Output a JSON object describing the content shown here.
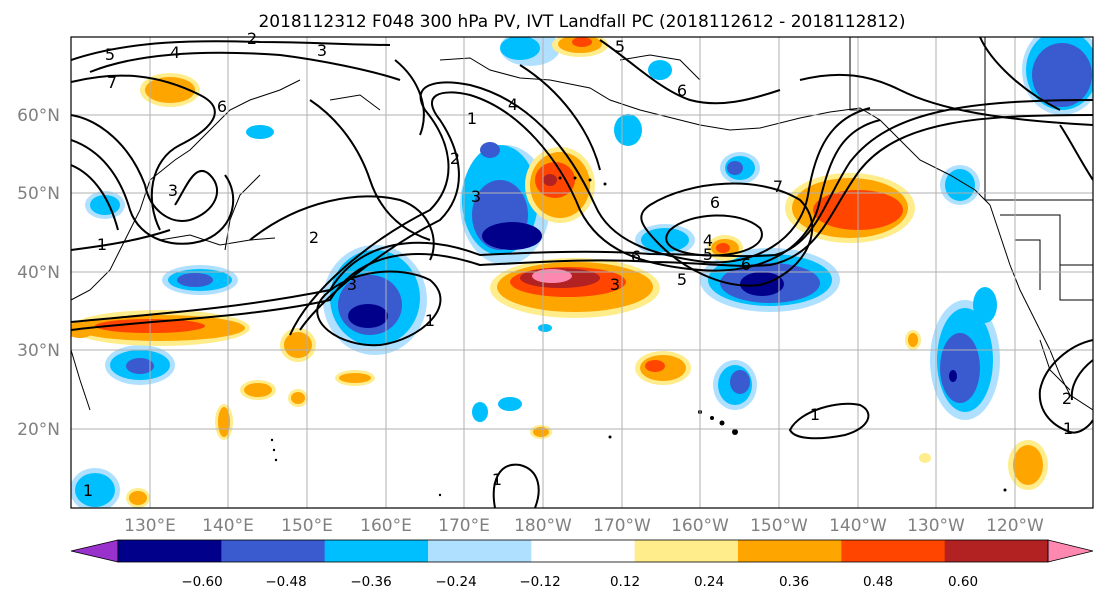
{
  "title": "2018112312 F048 300 hPa PV, IVT Landfall PC (2018112612 - 2018112812)",
  "lat_labels": [
    "60°N",
    "50°N",
    "40°N",
    "30°N",
    "20°N"
  ],
  "lon_labels": [
    "130°E",
    "140°E",
    "150°E",
    "160°E",
    "170°E",
    "180°W",
    "170°W",
    "160°W",
    "150°W",
    "140°W",
    "130°W",
    "120°W"
  ],
  "colorbar": {
    "ticks": [
      "−0.60",
      "−0.48",
      "−0.36",
      "−0.24",
      "−0.12",
      "0.12",
      "0.24",
      "0.36",
      "0.48",
      "0.60"
    ],
    "colors": [
      "#9932cc",
      "#00008b",
      "#3a5bd0",
      "#00bfff",
      "#b0e0ff",
      "#ffffff",
      "#ffec8b",
      "#ffa500",
      "#ff4500",
      "#b22222",
      "#ff88b0"
    ]
  },
  "contour_labels": [
    "5",
    "4",
    "2",
    "3",
    "7",
    "6",
    "1",
    "2",
    "3",
    "4",
    "1",
    "2",
    "3",
    "5",
    "6",
    "7",
    "6",
    "4",
    "5",
    "6",
    "5",
    "3",
    "1",
    "3",
    "1",
    "1",
    "2",
    "1",
    "1",
    "6"
  ],
  "colors": {
    "grid": "#b0b0b0",
    "contour": "#000000",
    "label_gray": "#808080"
  }
}
